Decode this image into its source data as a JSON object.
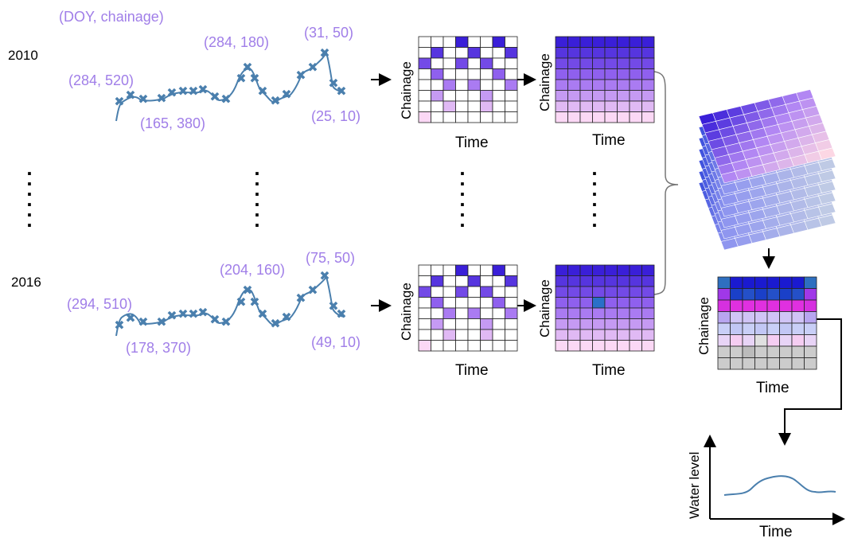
{
  "header": {
    "coord_label": "(DOY, chainage)"
  },
  "rows": [
    {
      "year": "2010",
      "points": [
        "(284, 520)",
        "(165, 380)",
        "(284, 180)",
        "(31, 50)",
        "(25, 10)"
      ]
    },
    {
      "year": "2016",
      "points": [
        "(294, 510)",
        "(178, 370)",
        "(204, 160)",
        "(75, 50)",
        "(49, 10)"
      ]
    }
  ],
  "axes": {
    "chainage": "Chainage",
    "time": "Time",
    "water_level": "Water level"
  },
  "colors": {
    "trace": "#4a7fad",
    "label": "#a07ee8",
    "grid_dark": "#1a1acc",
    "grid_mid": "#9b5cf0",
    "grid_light": "#f5d0ee",
    "gray": "#cccccc"
  }
}
